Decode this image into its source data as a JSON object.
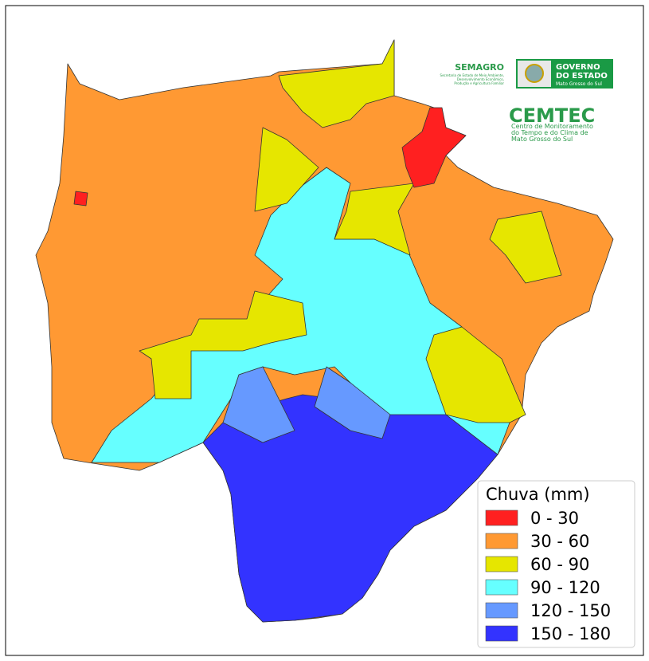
{
  "header": {
    "semagro": {
      "name": "SEMAGRO",
      "lines": [
        "Secretaria de Estado de Meio Ambiente,",
        "Desenvolvimento Econômico,",
        "Produção e Agricultura Familiar"
      ]
    },
    "governo": {
      "lines": [
        "GOVERNO",
        "DO ESTADO"
      ],
      "state": "Mato Grosso do Sul"
    },
    "cemtec": {
      "name": "CEMTEC",
      "lines": [
        "Centro de Monitoramento",
        "do Tempo e do Clima de",
        "Mato Grosso do Sul"
      ]
    }
  },
  "legend": {
    "title": "Chuva (mm)",
    "items": [
      {
        "label": "0 - 30",
        "color": "#ff2020"
      },
      {
        "label": "30 - 60",
        "color": "#ff9933"
      },
      {
        "label": "60 - 90",
        "color": "#e6e600"
      },
      {
        "label": "90 - 120",
        "color": "#66ffff"
      },
      {
        "label": "120 - 150",
        "color": "#6699ff"
      },
      {
        "label": "150 - 180",
        "color": "#3333ff"
      }
    ]
  }
}
